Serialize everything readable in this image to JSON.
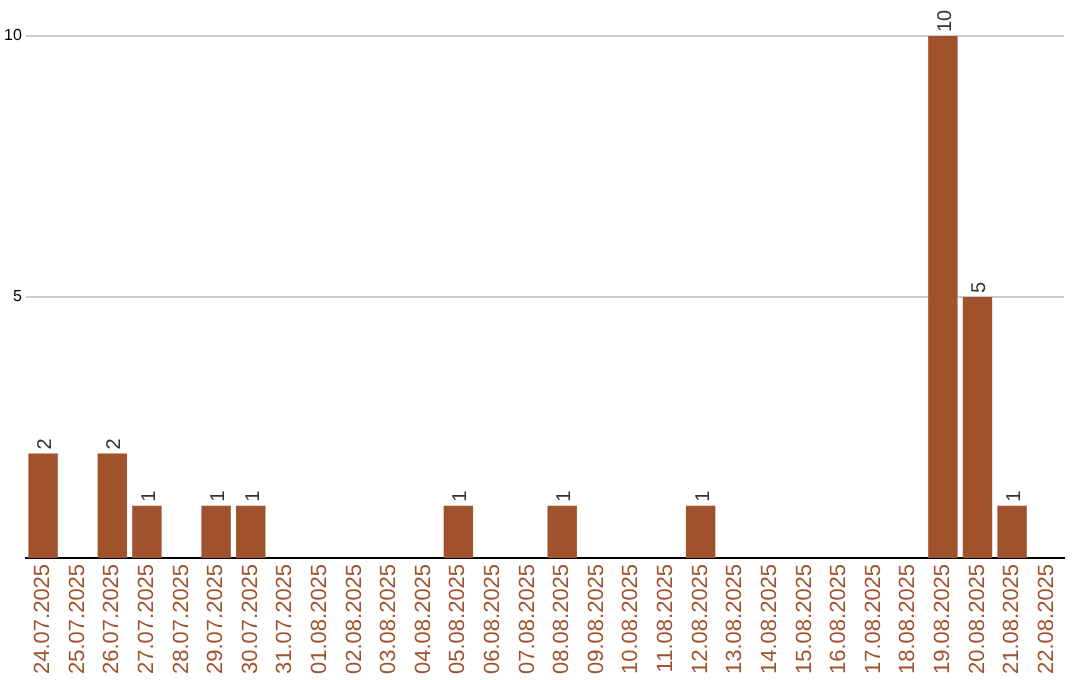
{
  "chart_data": {
    "type": "bar",
    "categories": [
      "24.07.2025",
      "25.07.2025",
      "26.07.2025",
      "27.07.2025",
      "28.07.2025",
      "29.07.2025",
      "30.07.2025",
      "31.07.2025",
      "01.08.2025",
      "02.08.2025",
      "03.08.2025",
      "04.08.2025",
      "05.08.2025",
      "06.08.2025",
      "07.08.2025",
      "08.08.2025",
      "09.08.2025",
      "10.08.2025",
      "11.08.2025",
      "12.08.2025",
      "13.08.2025",
      "14.08.2025",
      "15.08.2025",
      "16.08.2025",
      "17.08.2025",
      "18.08.2025",
      "19.08.2025",
      "20.08.2025",
      "21.08.2025",
      "22.08.2025"
    ],
    "values": [
      2,
      0,
      2,
      1,
      0,
      1,
      1,
      0,
      0,
      0,
      0,
      0,
      1,
      0,
      0,
      1,
      0,
      0,
      0,
      1,
      0,
      0,
      0,
      0,
      0,
      0,
      10,
      5,
      1,
      0
    ],
    "value_labels": [
      "2",
      null,
      "2",
      "1",
      null,
      "1",
      "1",
      null,
      null,
      null,
      null,
      null,
      "1",
      null,
      null,
      "1",
      null,
      null,
      null,
      "1",
      null,
      null,
      null,
      null,
      null,
      null,
      "10",
      "5",
      "1",
      null
    ],
    "color": "#a0522d",
    "ylim": [
      0,
      10
    ],
    "yticks": [
      5,
      10
    ],
    "grid": "y",
    "legend": false
  }
}
